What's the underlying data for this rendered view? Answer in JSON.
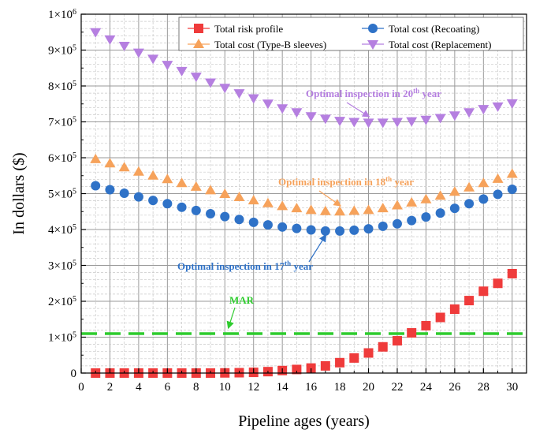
{
  "chart_data": {
    "type": "line",
    "xlabel": "Pipeline ages (years)",
    "ylabel": "In dollars ($)",
    "xlim": [
      0,
      31
    ],
    "ylim": [
      0,
      1000000
    ],
    "x_ticks": [
      0,
      2,
      4,
      6,
      8,
      10,
      12,
      14,
      16,
      18,
      20,
      22,
      24,
      26,
      28,
      30
    ],
    "y_ticks": [
      {
        "value": 0,
        "mantissa": "0",
        "exponent": ""
      },
      {
        "value": 100000,
        "mantissa": "1×10",
        "exponent": "5"
      },
      {
        "value": 200000,
        "mantissa": "2×10",
        "exponent": "5"
      },
      {
        "value": 300000,
        "mantissa": "3×10",
        "exponent": "5"
      },
      {
        "value": 400000,
        "mantissa": "4×10",
        "exponent": "5"
      },
      {
        "value": 500000,
        "mantissa": "5×10",
        "exponent": "5"
      },
      {
        "value": 600000,
        "mantissa": "6×10",
        "exponent": "5"
      },
      {
        "value": 700000,
        "mantissa": "7×10",
        "exponent": "5"
      },
      {
        "value": 800000,
        "mantissa": "8×10",
        "exponent": "5"
      },
      {
        "value": 900000,
        "mantissa": "9×10",
        "exponent": "5"
      },
      {
        "value": 1000000,
        "mantissa": "1×10",
        "exponent": "6"
      }
    ],
    "grid": true,
    "legend_position": "top",
    "x": [
      1,
      2,
      3,
      4,
      5,
      6,
      7,
      8,
      9,
      10,
      11,
      12,
      13,
      14,
      15,
      16,
      17,
      18,
      19,
      20,
      21,
      22,
      23,
      24,
      25,
      26,
      27,
      28,
      29,
      30
    ],
    "series": [
      {
        "name": "Total risk profile",
        "color": "#ef3b3b",
        "marker": "square",
        "values": [
          0,
          0,
          0,
          0,
          0,
          0,
          0,
          0,
          0,
          500,
          1000,
          2000,
          4000,
          7000,
          10000,
          14000,
          20000,
          29000,
          42000,
          56000,
          73000,
          90000,
          112000,
          132000,
          155000,
          178000,
          202000,
          228000,
          250000,
          277000
        ]
      },
      {
        "name": "Total cost (Recoating)",
        "color": "#2f72c7",
        "marker": "circle",
        "values": [
          522000,
          511000,
          501000,
          491000,
          481000,
          472000,
          462000,
          453000,
          444000,
          436000,
          428000,
          420000,
          413000,
          407000,
          403000,
          399000,
          396000,
          396000,
          398000,
          402000,
          409000,
          416000,
          425000,
          435000,
          446000,
          459000,
          472000,
          485000,
          498000,
          512000
        ]
      },
      {
        "name": "Total cost (Type-B sleeves)",
        "color": "#f6a25b",
        "marker": "triangle-up",
        "values": [
          596000,
          584000,
          573000,
          561000,
          550000,
          540000,
          529000,
          519000,
          509000,
          499000,
          490000,
          481000,
          473000,
          465000,
          459000,
          454000,
          451000,
          450000,
          452000,
          454000,
          459000,
          467000,
          475000,
          484000,
          494000,
          505000,
          517000,
          529000,
          541000,
          555000
        ]
      },
      {
        "name": "Total cost (Replacement)",
        "color": "#b57fe0",
        "marker": "triangle-down",
        "values": [
          950000,
          930000,
          912000,
          893000,
          876000,
          859000,
          842000,
          826000,
          810000,
          795000,
          780000,
          766000,
          751000,
          738000,
          727000,
          716000,
          709000,
          703000,
          700000,
          698000,
          698000,
          700000,
          702000,
          706000,
          711000,
          718000,
          727000,
          736000,
          743000,
          752000
        ]
      }
    ],
    "mar": {
      "label": "MAR",
      "value": 110000,
      "color": "#2ecc2e"
    },
    "annotations": [
      {
        "id": "a20",
        "text_pre": "Optimal inspection in 20",
        "sup": "th",
        "text_post": " year",
        "color": "#b57fe0",
        "target_x": 20,
        "target_y": 698000
      },
      {
        "id": "a18",
        "text_pre": "Optimal inspection in 18",
        "sup": "th",
        "text_post": " year",
        "color": "#f6a25b",
        "target_x": 18,
        "target_y": 450000
      },
      {
        "id": "a17",
        "text_pre": "Optimal inspection in 17",
        "sup": "th",
        "text_post": " year",
        "color": "#2f72c7",
        "target_x": 17,
        "target_y": 396000
      }
    ]
  }
}
